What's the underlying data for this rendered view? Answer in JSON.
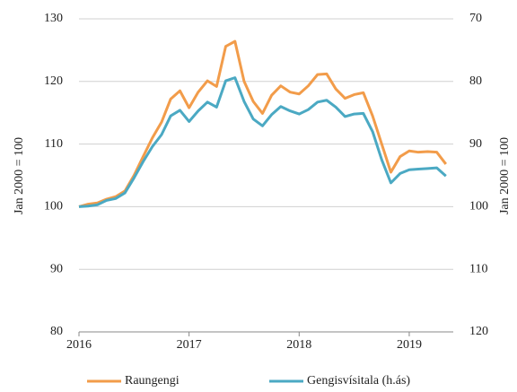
{
  "chart_data": {
    "type": "line",
    "ylabel": "Jan 2000  = 100",
    "y2label": "Jan 2000  = 100",
    "x": [
      2016,
      2016.083,
      2016.167,
      2016.25,
      2016.333,
      2016.417,
      2016.5,
      2016.583,
      2016.667,
      2016.75,
      2016.833,
      2016.917,
      2017,
      2017.083,
      2017.167,
      2017.25,
      2017.333,
      2017.417,
      2017.5,
      2017.583,
      2017.667,
      2017.75,
      2017.833,
      2017.917,
      2018,
      2018.083,
      2018.167,
      2018.25,
      2018.333,
      2018.417,
      2018.5,
      2018.583,
      2018.667,
      2018.75,
      2018.833,
      2018.917,
      2019,
      2019.083,
      2019.167,
      2019.25,
      2019.333
    ],
    "series": [
      {
        "name": "Raungengi",
        "color": "#f29c4a",
        "values": [
          100,
          100.4,
          100.6,
          101.2,
          101.6,
          102.5,
          105,
          108,
          111,
          113.5,
          117.2,
          118.5,
          115.8,
          118.3,
          120.1,
          119.2,
          125.6,
          126.4,
          120,
          116.8,
          114.9,
          117.8,
          119.3,
          118.3,
          118,
          119.3,
          121.1,
          121.2,
          118.8,
          117.3,
          117.9,
          118.2,
          114.5,
          110,
          105.5,
          108,
          108.9,
          108.7,
          108.8,
          108.7,
          106.8
        ]
      },
      {
        "name": "Gengisvísitala (h.ás)",
        "color": "#4ba9c3",
        "axis": "y2",
        "values": [
          100,
          99.9,
          99.7,
          99,
          98.7,
          97.8,
          95.4,
          92.8,
          90.4,
          88.5,
          85.5,
          84.6,
          86.4,
          84.7,
          83.3,
          84.1,
          79.9,
          79.4,
          83.2,
          86,
          87.1,
          85.3,
          84,
          84.7,
          85.2,
          84.5,
          83.3,
          83,
          84.1,
          85.6,
          85.2,
          85.1,
          88,
          92.5,
          96.2,
          94.7,
          94.1,
          94,
          93.9,
          93.8,
          95.1
        ]
      }
    ],
    "xlim": [
      2016,
      2019.4
    ],
    "xticks": [
      2016,
      2017,
      2018,
      2019
    ],
    "ylim": [
      80,
      130
    ],
    "yticks": [
      80,
      90,
      100,
      110,
      120,
      130
    ],
    "y2lim": [
      120,
      70
    ],
    "y2ticks": [
      70,
      80,
      90,
      100,
      110,
      120
    ],
    "grid": true,
    "legend": "bottom"
  }
}
